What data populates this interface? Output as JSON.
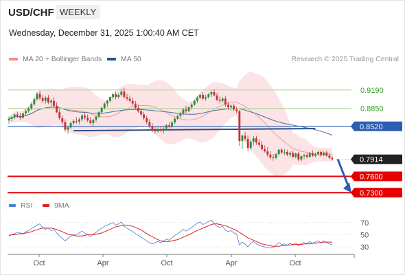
{
  "header": {
    "symbol": "USD/CHF",
    "period": "WEEKLY",
    "datetime": "Wednesday, December 31, 2025 1:00:40 AM CET"
  },
  "legend": {
    "ma20": {
      "label": "MA 20 + Bollinger Bands",
      "color": "#f08c8c"
    },
    "ma50": {
      "label": "MA 50",
      "color": "#2b4f8c"
    },
    "credit": "Research © 2025 Trading Central"
  },
  "rsi_legend": {
    "rsi": {
      "label": "RSI",
      "color": "#4a7fd4"
    },
    "ma9": {
      "label": "9MA",
      "color": "#e02020"
    }
  },
  "colors": {
    "up": "#2d8a3a",
    "down": "#c23333",
    "band": "#fadadd",
    "ma20": "#e7a0a0",
    "ma50": "#4a6fa5",
    "resistance_green": "#b5d99c",
    "support_red": "#e60000",
    "pivot_blue": "#2b5eb0",
    "current": "#222222",
    "arrow": "#2b5eb0"
  },
  "chart_data": [
    {
      "type": "candlestick",
      "title": "USD/CHF",
      "x_tick_labels": [
        "Oct",
        "Apr",
        "Oct",
        "Apr",
        "Oct"
      ],
      "ohlc": [
        [
          0.863,
          0.87,
          0.857,
          0.866
        ],
        [
          0.866,
          0.872,
          0.86,
          0.869
        ],
        [
          0.869,
          0.876,
          0.865,
          0.874
        ],
        [
          0.874,
          0.879,
          0.868,
          0.871
        ],
        [
          0.871,
          0.877,
          0.864,
          0.868
        ],
        [
          0.868,
          0.877,
          0.866,
          0.876
        ],
        [
          0.876,
          0.883,
          0.871,
          0.88
        ],
        [
          0.88,
          0.888,
          0.877,
          0.885
        ],
        [
          0.885,
          0.896,
          0.882,
          0.893
        ],
        [
          0.893,
          0.905,
          0.89,
          0.902
        ],
        [
          0.902,
          0.915,
          0.899,
          0.912
        ],
        [
          0.912,
          0.918,
          0.9,
          0.904
        ],
        [
          0.904,
          0.91,
          0.895,
          0.899
        ],
        [
          0.899,
          0.907,
          0.894,
          0.905
        ],
        [
          0.905,
          0.91,
          0.893,
          0.896
        ],
        [
          0.896,
          0.902,
          0.89,
          0.899
        ],
        [
          0.899,
          0.906,
          0.886,
          0.89
        ],
        [
          0.89,
          0.896,
          0.876,
          0.878
        ],
        [
          0.878,
          0.884,
          0.864,
          0.867
        ],
        [
          0.867,
          0.872,
          0.855,
          0.86
        ],
        [
          0.86,
          0.865,
          0.842,
          0.846
        ],
        [
          0.846,
          0.853,
          0.838,
          0.85
        ],
        [
          0.85,
          0.861,
          0.847,
          0.858
        ],
        [
          0.858,
          0.865,
          0.854,
          0.862
        ],
        [
          0.862,
          0.869,
          0.857,
          0.861
        ],
        [
          0.861,
          0.868,
          0.856,
          0.865
        ],
        [
          0.865,
          0.875,
          0.861,
          0.872
        ],
        [
          0.872,
          0.878,
          0.864,
          0.868
        ],
        [
          0.868,
          0.874,
          0.86,
          0.863
        ],
        [
          0.863,
          0.869,
          0.855,
          0.858
        ],
        [
          0.858,
          0.866,
          0.853,
          0.864
        ],
        [
          0.864,
          0.872,
          0.86,
          0.87
        ],
        [
          0.87,
          0.88,
          0.867,
          0.878
        ],
        [
          0.878,
          0.888,
          0.874,
          0.886
        ],
        [
          0.886,
          0.896,
          0.883,
          0.894
        ],
        [
          0.894,
          0.901,
          0.888,
          0.899
        ],
        [
          0.899,
          0.907,
          0.896,
          0.906
        ],
        [
          0.906,
          0.913,
          0.902,
          0.911
        ],
        [
          0.911,
          0.916,
          0.902,
          0.906
        ],
        [
          0.906,
          0.913,
          0.903,
          0.91
        ],
        [
          0.91,
          0.92,
          0.907,
          0.916
        ],
        [
          0.916,
          0.923,
          0.903,
          0.906
        ],
        [
          0.906,
          0.912,
          0.899,
          0.903
        ],
        [
          0.903,
          0.909,
          0.896,
          0.899
        ],
        [
          0.899,
          0.905,
          0.89,
          0.894
        ],
        [
          0.894,
          0.899,
          0.883,
          0.886
        ],
        [
          0.886,
          0.892,
          0.877,
          0.88
        ],
        [
          0.88,
          0.885,
          0.87,
          0.874
        ],
        [
          0.874,
          0.879,
          0.863,
          0.867
        ],
        [
          0.867,
          0.872,
          0.856,
          0.86
        ],
        [
          0.86,
          0.865,
          0.848,
          0.852
        ],
        [
          0.852,
          0.858,
          0.841,
          0.845
        ],
        [
          0.845,
          0.851,
          0.838,
          0.843
        ],
        [
          0.843,
          0.852,
          0.84,
          0.847
        ],
        [
          0.847,
          0.853,
          0.842,
          0.844
        ],
        [
          0.844,
          0.851,
          0.839,
          0.848
        ],
        [
          0.848,
          0.856,
          0.845,
          0.854
        ],
        [
          0.854,
          0.86,
          0.848,
          0.851
        ],
        [
          0.851,
          0.862,
          0.849,
          0.859
        ],
        [
          0.859,
          0.869,
          0.856,
          0.866
        ],
        [
          0.866,
          0.874,
          0.863,
          0.871
        ],
        [
          0.871,
          0.879,
          0.867,
          0.876
        ],
        [
          0.876,
          0.886,
          0.872,
          0.883
        ],
        [
          0.883,
          0.89,
          0.876,
          0.88
        ],
        [
          0.88,
          0.889,
          0.878,
          0.887
        ],
        [
          0.887,
          0.895,
          0.883,
          0.892
        ],
        [
          0.892,
          0.901,
          0.89,
          0.899
        ],
        [
          0.899,
          0.908,
          0.895,
          0.905
        ],
        [
          0.905,
          0.912,
          0.902,
          0.91
        ],
        [
          0.91,
          0.915,
          0.9,
          0.903
        ],
        [
          0.903,
          0.91,
          0.899,
          0.906
        ],
        [
          0.906,
          0.913,
          0.903,
          0.911
        ],
        [
          0.911,
          0.918,
          0.906,
          0.915
        ],
        [
          0.915,
          0.92,
          0.907,
          0.909
        ],
        [
          0.909,
          0.914,
          0.898,
          0.901
        ],
        [
          0.901,
          0.907,
          0.894,
          0.899
        ],
        [
          0.899,
          0.906,
          0.895,
          0.903
        ],
        [
          0.903,
          0.908,
          0.888,
          0.892
        ],
        [
          0.892,
          0.897,
          0.882,
          0.887
        ],
        [
          0.887,
          0.893,
          0.881,
          0.89
        ],
        [
          0.89,
          0.894,
          0.88,
          0.883
        ],
        [
          0.883,
          0.888,
          0.876,
          0.88
        ],
        [
          0.88,
          0.882,
          0.816,
          0.825
        ],
        [
          0.825,
          0.838,
          0.81,
          0.835
        ],
        [
          0.835,
          0.842,
          0.824,
          0.829
        ],
        [
          0.829,
          0.835,
          0.806,
          0.812
        ],
        [
          0.812,
          0.828,
          0.809,
          0.824
        ],
        [
          0.824,
          0.834,
          0.817,
          0.83
        ],
        [
          0.83,
          0.834,
          0.818,
          0.822
        ],
        [
          0.822,
          0.829,
          0.814,
          0.818
        ],
        [
          0.818,
          0.825,
          0.808,
          0.81
        ],
        [
          0.81,
          0.817,
          0.804,
          0.806
        ],
        [
          0.806,
          0.814,
          0.796,
          0.8
        ],
        [
          0.8,
          0.806,
          0.792,
          0.795
        ],
        [
          0.795,
          0.801,
          0.789,
          0.794
        ],
        [
          0.794,
          0.803,
          0.791,
          0.801
        ],
        [
          0.801,
          0.811,
          0.798,
          0.809
        ],
        [
          0.809,
          0.812,
          0.801,
          0.804
        ],
        [
          0.804,
          0.81,
          0.799,
          0.805
        ],
        [
          0.805,
          0.809,
          0.797,
          0.8
        ],
        [
          0.8,
          0.806,
          0.795,
          0.803
        ],
        [
          0.803,
          0.807,
          0.794,
          0.796
        ],
        [
          0.796,
          0.804,
          0.793,
          0.802
        ],
        [
          0.802,
          0.805,
          0.788,
          0.791
        ],
        [
          0.791,
          0.799,
          0.788,
          0.797
        ],
        [
          0.797,
          0.802,
          0.792,
          0.799
        ],
        [
          0.799,
          0.804,
          0.793,
          0.796
        ],
        [
          0.796,
          0.805,
          0.794,
          0.803
        ],
        [
          0.803,
          0.808,
          0.796,
          0.798
        ],
        [
          0.798,
          0.804,
          0.795,
          0.801
        ],
        [
          0.801,
          0.807,
          0.798,
          0.805
        ],
        [
          0.805,
          0.808,
          0.796,
          0.799
        ],
        [
          0.799,
          0.806,
          0.797,
          0.804
        ],
        [
          0.804,
          0.807,
          0.796,
          0.798
        ],
        [
          0.798,
          0.803,
          0.792,
          0.794
        ],
        [
          0.794,
          0.798,
          0.789,
          0.7914
        ]
      ],
      "levels": [
        {
          "value": 0.919,
          "label": "0.9190",
          "kind": "resistance"
        },
        {
          "value": 0.885,
          "label": "0.8850",
          "kind": "resistance"
        },
        {
          "value": 0.852,
          "label": "0.8520",
          "kind": "pivot"
        },
        {
          "value": 0.7914,
          "label": "0.7914",
          "kind": "current"
        },
        {
          "value": 0.76,
          "label": "0.7600",
          "kind": "support"
        },
        {
          "value": 0.73,
          "label": "0.7300",
          "kind": "support"
        }
      ],
      "trendline": {
        "from": [
          23,
          0.844
        ],
        "to": [
          109,
          0.848
        ]
      },
      "forecast_arrow": {
        "from": [
          116,
          0.7914
        ],
        "to": [
          124,
          0.73
        ]
      },
      "ylim": [
        0.724,
        0.958
      ],
      "bollinger_window": 20,
      "ma50_window": 50
    },
    {
      "type": "line",
      "title": "RSI",
      "yticks": [
        70,
        50,
        30
      ],
      "ylim": [
        20,
        80
      ],
      "series": [
        {
          "name": "RSI",
          "values": [
            48,
            50,
            52,
            54,
            53,
            51,
            55,
            57,
            60,
            63,
            66,
            68,
            62,
            59,
            61,
            57,
            58,
            53,
            48,
            44,
            40,
            44,
            48,
            51,
            50,
            53,
            56,
            53,
            50,
            47,
            51,
            54,
            58,
            61,
            64,
            66,
            68,
            70,
            66,
            68,
            71,
            64,
            61,
            58,
            55,
            52,
            49,
            46,
            43,
            40,
            37,
            35,
            37,
            39,
            37,
            40,
            43,
            41,
            45,
            49,
            52,
            55,
            59,
            56,
            59,
            62,
            66,
            69,
            71,
            67,
            69,
            72,
            74,
            68,
            64,
            62,
            64,
            58,
            55,
            57,
            53,
            51,
            33,
            38,
            35,
            30,
            36,
            39,
            35,
            33,
            31,
            30,
            29,
            28,
            29,
            33,
            37,
            34,
            35,
            33,
            36,
            33,
            37,
            32,
            36,
            37,
            35,
            39,
            36,
            38,
            40,
            37,
            40,
            37,
            35,
            34
          ]
        },
        {
          "name": "9MA",
          "values": [
            49,
            50,
            50,
            51,
            52,
            52,
            53,
            54,
            55,
            57,
            58,
            60,
            61,
            61,
            61,
            61,
            60,
            59,
            57,
            55,
            53,
            51,
            50,
            49,
            48,
            48,
            48,
            49,
            50,
            50,
            50,
            51,
            52,
            53,
            55,
            57,
            59,
            61,
            63,
            64,
            65,
            66,
            66,
            65,
            64,
            62,
            60,
            58,
            55,
            52,
            49,
            47,
            44,
            42,
            40,
            39,
            39,
            39,
            40,
            41,
            42,
            44,
            46,
            48,
            50,
            52,
            55,
            57,
            59,
            61,
            63,
            65,
            67,
            68,
            68,
            67,
            66,
            65,
            63,
            61,
            59,
            57,
            54,
            51,
            48,
            45,
            43,
            41,
            39,
            37,
            35,
            34,
            33,
            32,
            31,
            31,
            31,
            32,
            32,
            33,
            33,
            34,
            34,
            34,
            34,
            35,
            35,
            35,
            36,
            36,
            37,
            37,
            38,
            38,
            38,
            38
          ]
        }
      ]
    }
  ]
}
